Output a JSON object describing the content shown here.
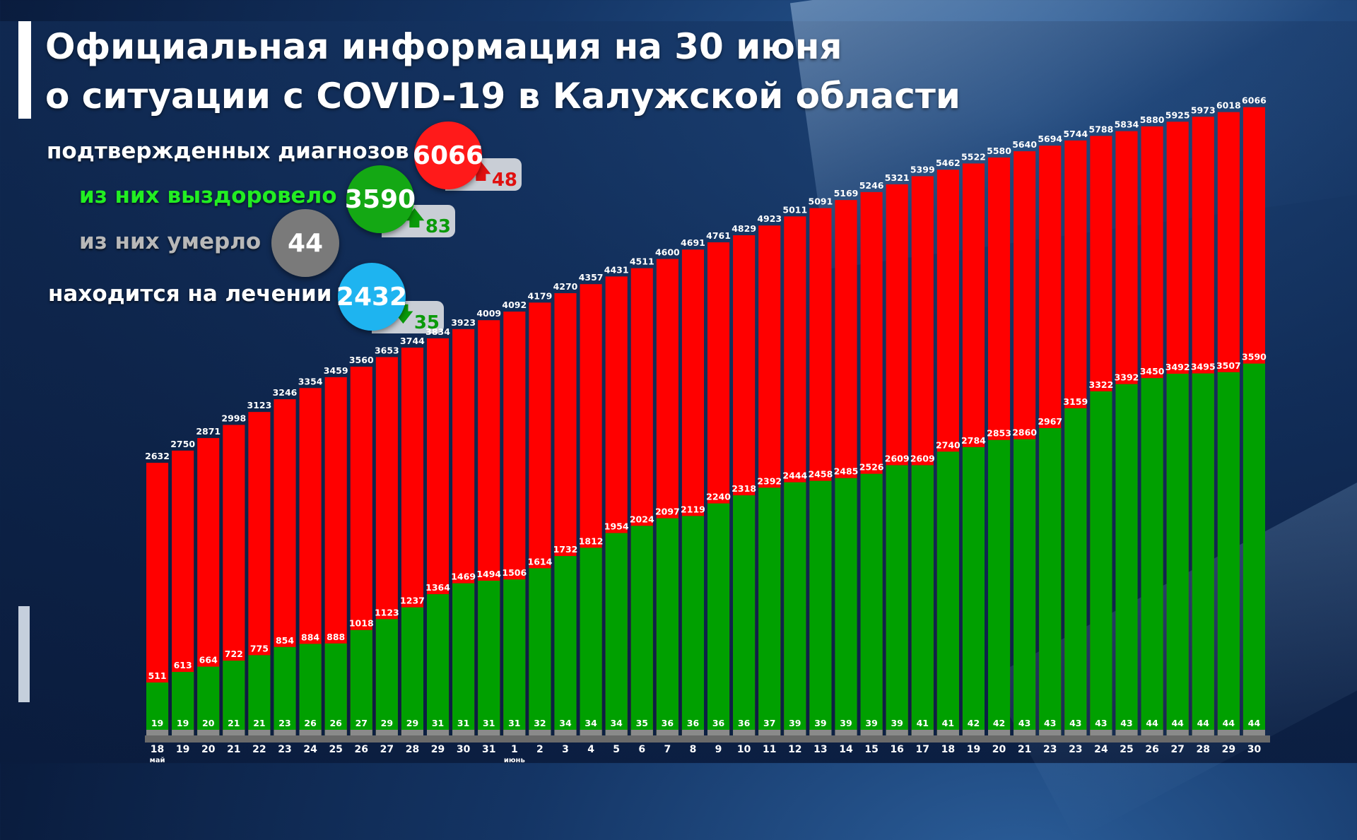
{
  "title": {
    "line1": "Официальная информация на 30 июня",
    "line2": "о ситуации с COVID-19 в Калужской области"
  },
  "stats": {
    "confirmed": {
      "label": "подтвержденных диагнозов",
      "value": "6066",
      "delta": "48",
      "color": "#ff1a1a"
    },
    "recovered": {
      "label": "из них выздоровело",
      "value": "3590",
      "delta": "83",
      "color": "#14a814"
    },
    "died": {
      "label": "из них умерло",
      "value": "44",
      "color": "#7a7a7a"
    },
    "treatment": {
      "label": "находится на лечении",
      "value": "2432",
      "delta": "35",
      "color": "#1eb4f0"
    }
  },
  "chart_data": {
    "type": "bar",
    "categories": [
      "18",
      "19",
      "20",
      "21",
      "22",
      "23",
      "24",
      "25",
      "26",
      "27",
      "28",
      "29",
      "30",
      "31",
      "1",
      "2",
      "3",
      "4",
      "5",
      "6",
      "7",
      "8",
      "9",
      "10",
      "11",
      "12",
      "13",
      "14",
      "15",
      "16",
      "17",
      "18",
      "19",
      "20",
      "21",
      "23",
      "23",
      "24",
      "25",
      "26",
      "27",
      "28",
      "29",
      "30"
    ],
    "month_labels": [
      {
        "index": 0,
        "text": "май"
      },
      {
        "index": 14,
        "text": "июнь"
      }
    ],
    "series": [
      {
        "name": "подтвержденных диагнозов",
        "color": "#ff0000",
        "values": [
          2632,
          2750,
          2871,
          2998,
          3123,
          3246,
          3354,
          3459,
          3560,
          3653,
          3744,
          3834,
          3923,
          4009,
          4092,
          4179,
          4270,
          4357,
          4431,
          4511,
          4600,
          4691,
          4761,
          4829,
          4923,
          5011,
          5091,
          5169,
          5246,
          5321,
          5399,
          5462,
          5522,
          5580,
          5640,
          5694,
          5744,
          5788,
          5834,
          5880,
          5925,
          5973,
          6018,
          6066
        ]
      },
      {
        "name": "из них выздоровело",
        "color": "#00a000",
        "values": [
          511,
          613,
          664,
          722,
          775,
          854,
          884,
          888,
          1018,
          1123,
          1237,
          1364,
          1469,
          1494,
          1506,
          1614,
          1732,
          1812,
          1954,
          2024,
          2097,
          2119,
          2240,
          2318,
          2392,
          2444,
          2458,
          2485,
          2526,
          2609,
          2609,
          2740,
          2784,
          2853,
          2860,
          2967,
          3159,
          3322,
          3392,
          3450,
          3492,
          3495,
          3507,
          3590
        ]
      },
      {
        "name": "из них умерло",
        "color": "#8a8a8a",
        "values": [
          19,
          19,
          20,
          21,
          21,
          23,
          26,
          26,
          27,
          29,
          29,
          31,
          31,
          31,
          31,
          32,
          34,
          34,
          34,
          35,
          36,
          36,
          36,
          36,
          37,
          39,
          39,
          39,
          39,
          39,
          41,
          41,
          42,
          42,
          43,
          43,
          43,
          43,
          43,
          44,
          44,
          44,
          44,
          44
        ]
      }
    ],
    "ylim": [
      0,
      6200
    ],
    "grid": false,
    "legend": "none"
  }
}
